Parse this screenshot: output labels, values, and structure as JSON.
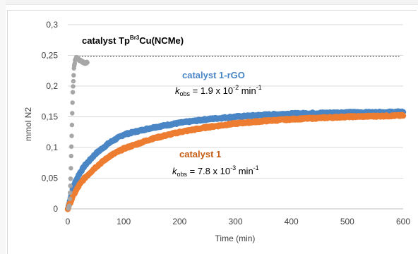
{
  "chart_data": {
    "type": "scatter",
    "xlabel": "Time (min)",
    "ylabel": "mmol N2",
    "xlim": [
      0,
      600
    ],
    "ylim": [
      0,
      0.3
    ],
    "x_ticks": [
      "0",
      "100",
      "200",
      "300",
      "400",
      "500",
      "600"
    ],
    "y_ticks": [
      "0",
      "0,05",
      "0,1",
      "0,15",
      "0,2",
      "0,25",
      "0,3"
    ],
    "grid": "horizontal",
    "reference_line": {
      "y": 0.248,
      "style": "dashed"
    },
    "series": [
      {
        "name": "catalyst Tp",
        "name_superscript": "Br3",
        "name_suffix": "Cu(NCMe)",
        "color": "#a6a6a6",
        "x": [
          1,
          3,
          5,
          7,
          9,
          11,
          13,
          15,
          17,
          20,
          25,
          30,
          35
        ],
        "y": [
          0.0,
          0.005,
          0.05,
          0.12,
          0.19,
          0.228,
          0.242,
          0.246,
          0.245,
          0.243,
          0.24,
          0.238,
          0.238
        ]
      },
      {
        "name": "catalyst 1-rGO",
        "k_label": "k",
        "k_sub": "obs",
        "k_text": " = 1.9 x 10",
        "k_exp": "-2",
        "k_unit": " min",
        "k_unit_exp": "-1",
        "color": "#4a86c5",
        "x": [
          0,
          10,
          20,
          30,
          50,
          75,
          100,
          150,
          200,
          250,
          300,
          350,
          400,
          450,
          500,
          550,
          600
        ],
        "y": [
          0.0,
          0.037,
          0.056,
          0.07,
          0.09,
          0.108,
          0.121,
          0.132,
          0.14,
          0.146,
          0.15,
          0.153,
          0.155,
          0.156,
          0.157,
          0.157,
          0.158
        ]
      },
      {
        "name": "catalyst 1",
        "k_label": "k",
        "k_sub": "obs",
        "k_text": " = 7.8 x 10",
        "k_exp": "-3",
        "k_unit": " min",
        "k_unit_exp": "-1",
        "color": "#ed7d31",
        "x": [
          0,
          10,
          20,
          30,
          50,
          75,
          100,
          150,
          200,
          250,
          300,
          350,
          400,
          450,
          500,
          550,
          600
        ],
        "y": [
          0.0,
          0.022,
          0.038,
          0.05,
          0.068,
          0.086,
          0.098,
          0.114,
          0.125,
          0.133,
          0.139,
          0.143,
          0.146,
          0.148,
          0.15,
          0.151,
          0.152
        ]
      }
    ]
  }
}
